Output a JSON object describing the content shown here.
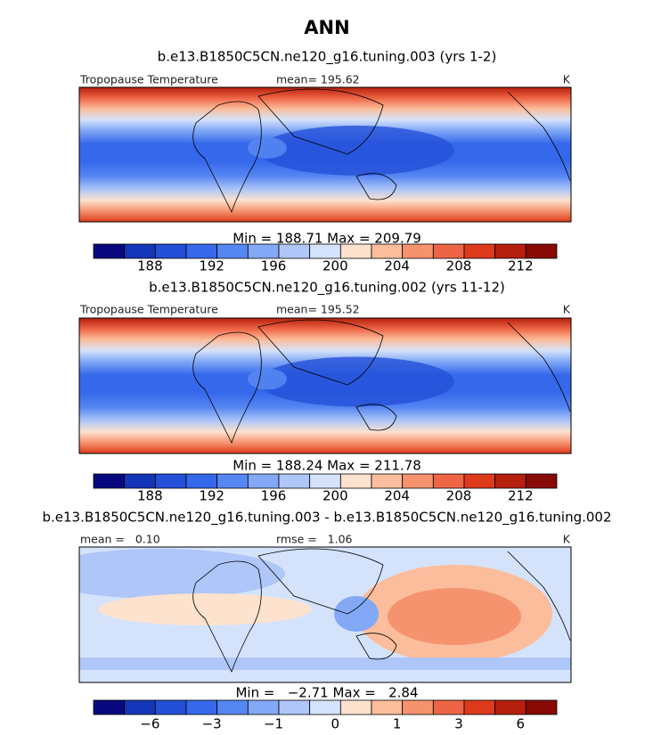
{
  "title": "ANN",
  "colorbar_colors": [
    "#08087e",
    "#1535b8",
    "#2450d8",
    "#3568ea",
    "#5686f2",
    "#82a8f6",
    "#aec6f8",
    "#d4e3fb",
    "#fde2cd",
    "#fbbd9b",
    "#f6936f",
    "#ee6545",
    "#dd3a1c",
    "#b51f0d",
    "#870a06"
  ],
  "panels": [
    {
      "subtitle": "b.e13.B1850C5CN.ne120_g16.tuning.003 (yrs 1-2)",
      "left_label": "Tropopause Temperature",
      "center_label": "mean= 195.62",
      "units": "K",
      "minmax": "Min = 188.71 Max = 209.79",
      "colorbar_ticks": [
        188,
        192,
        196,
        200,
        204,
        208,
        212
      ]
    },
    {
      "subtitle": "b.e13.B1850C5CN.ne120_g16.tuning.002 (yrs 11-12)",
      "left_label": "Tropopause Temperature",
      "center_label": "mean= 195.52",
      "units": "K",
      "minmax": "Min = 188.24 Max = 211.78",
      "colorbar_ticks": [
        188,
        192,
        196,
        200,
        204,
        208,
        212
      ]
    },
    {
      "subtitle": "b.e13.B1850C5CN.ne120_g16.tuning.003 - b.e13.B1850C5CN.ne120_g16.tuning.002",
      "left_label": "mean =   0.10",
      "center_label": "rmse =   1.06",
      "units": "K",
      "minmax": "Min =   −2.71 Max =   2.84",
      "colorbar_ticks": [
        {
          "value": -6,
          "label": "−6"
        },
        {
          "value": -3,
          "label": "−3"
        },
        {
          "value": -1,
          "label": "−1"
        },
        0,
        1,
        3,
        6
      ]
    }
  ]
}
